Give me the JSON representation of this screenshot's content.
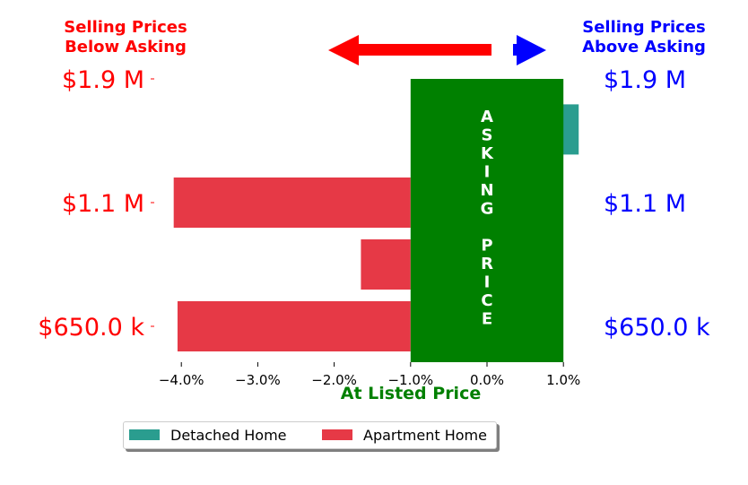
{
  "header": {
    "below_line1": "Selling Prices",
    "below_line2": "Below Asking",
    "above_line1": "Selling Prices",
    "above_line2": "Above Asking",
    "below_color": "#ff0000",
    "above_color": "#0000ff"
  },
  "asking_price_text": "ASKING PRICE",
  "xlabel": "At Listed Price",
  "colors": {
    "detached": "#2a9d8f",
    "apartment": "#e63946",
    "asking_box": "#008000",
    "left_labels": "#ff0000",
    "right_labels": "#0000ff",
    "xlabel": "#008000"
  },
  "chart_data": {
    "type": "bar",
    "orientation": "horizontal",
    "xlim": [
      -4.3,
      1.3
    ],
    "x_ticks": [
      {
        "value": -4.0,
        "label": "−4.0%"
      },
      {
        "value": -3.0,
        "label": "−3.0%"
      },
      {
        "value": -2.0,
        "label": "−2.0%"
      },
      {
        "value": -1.0,
        "label": "−1.0%"
      },
      {
        "value": 0.0,
        "label": "0.0%"
      },
      {
        "value": 1.0,
        "label": "1.0%"
      }
    ],
    "price_labels": [
      {
        "label": "$1.9 M",
        "row": 0
      },
      {
        "label": "$1.1 M",
        "row": 2
      },
      {
        "label": "$650.0 k",
        "row": 4
      }
    ],
    "bars": [
      {
        "series": "Detached Home",
        "row": 0.6,
        "from": 0.0,
        "to": 1.2
      },
      {
        "series": "Apartment Home",
        "row": 2,
        "from": -1.0,
        "to": -4.1
      },
      {
        "series": "Apartment Home",
        "row": 3,
        "from": -1.0,
        "to": -1.65
      },
      {
        "series": "Apartment Home",
        "row": 4,
        "from": -1.0,
        "to": -4.05
      }
    ],
    "asking_region": {
      "from": -1.0,
      "to": 1.0
    },
    "legend": [
      {
        "name": "Detached Home",
        "color": "#2a9d8f"
      },
      {
        "name": "Apartment Home",
        "color": "#e63946"
      }
    ],
    "legend_placement": "bottom-center",
    "grid": false
  }
}
